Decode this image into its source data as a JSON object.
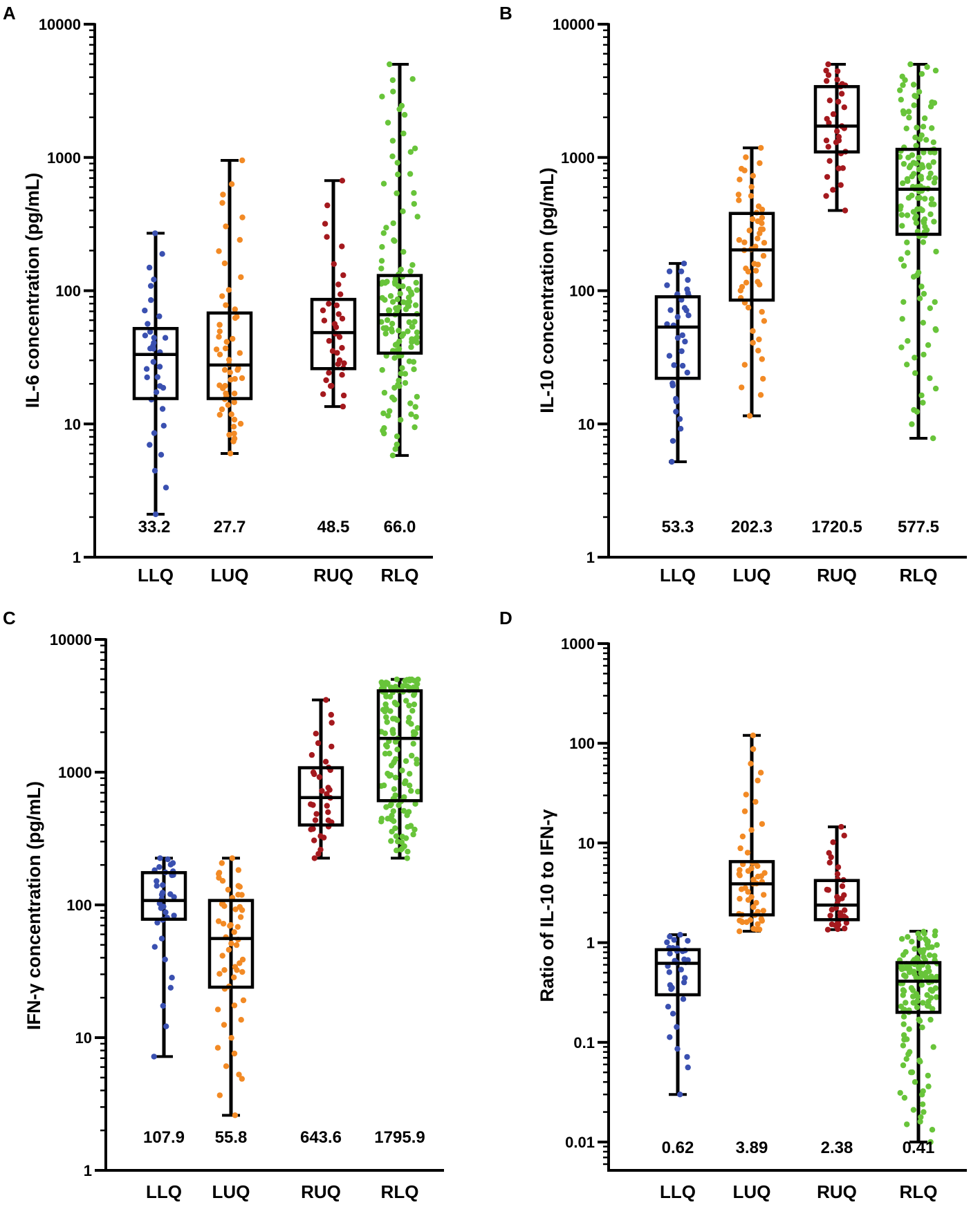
{
  "colors": {
    "LLQ": "#3a50b0",
    "LUQ": "#f28a25",
    "RUQ": "#a4191e",
    "RLQ": "#68c43a",
    "axis": "#000000"
  },
  "chart_data": [
    {
      "type": "box",
      "panel": "A",
      "title": "",
      "xlabel": "",
      "ylabel": "IL-6 concentration (pg/mL)",
      "yscale": "log",
      "ylim": [
        1,
        10000
      ],
      "yticks": [
        1,
        10,
        100,
        1000,
        10000
      ],
      "ytick_labels": [
        "1",
        "10",
        "100",
        "1000",
        "10000"
      ],
      "categories": [
        "LLQ",
        "LUQ",
        "RUQ",
        "RLQ"
      ],
      "boxes": [
        {
          "min": 2.1,
          "q1": 15.5,
          "median": 33.2,
          "q3": 52,
          "max": 270,
          "n": 35
        },
        {
          "min": 6,
          "q1": 15.5,
          "median": 27.7,
          "q3": 68,
          "max": 950,
          "n": 55
        },
        {
          "min": 13.5,
          "q1": 26,
          "median": 48.5,
          "q3": 86,
          "max": 670,
          "n": 35
        },
        {
          "min": 5.8,
          "q1": 34,
          "median": 66.0,
          "q3": 130,
          "max": 5000,
          "n": 140
        }
      ],
      "median_labels": [
        "33.2",
        "27.7",
        "48.5",
        "66.0"
      ]
    },
    {
      "type": "box",
      "panel": "B",
      "title": "",
      "xlabel": "",
      "ylabel": "IL-10 concentration (pg/mL)",
      "yscale": "log",
      "ylim": [
        1,
        10000
      ],
      "yticks": [
        1,
        10,
        100,
        1000,
        10000
      ],
      "ytick_labels": [
        "1",
        "10",
        "100",
        "1000",
        "10000"
      ],
      "categories": [
        "LLQ",
        "LUQ",
        "RUQ",
        "RLQ"
      ],
      "boxes": [
        {
          "min": 5.2,
          "q1": 22,
          "median": 53.3,
          "q3": 90,
          "max": 160,
          "n": 35
        },
        {
          "min": 11.5,
          "q1": 85,
          "median": 202.3,
          "q3": 380,
          "max": 1180,
          "n": 55
        },
        {
          "min": 400,
          "q1": 1100,
          "median": 1720.5,
          "q3": 3400,
          "max": 5000,
          "n": 35
        },
        {
          "min": 7.8,
          "q1": 265,
          "median": 577.5,
          "q3": 1150,
          "max": 5000,
          "n": 140
        }
      ],
      "median_labels": [
        "53.3",
        "202.3",
        "1720.5",
        "577.5"
      ]
    },
    {
      "type": "box",
      "panel": "C",
      "title": "",
      "xlabel": "",
      "ylabel": "IFN-γ concentration (pg/mL)",
      "yscale": "log",
      "ylim": [
        1,
        10000
      ],
      "yticks": [
        1,
        10,
        100,
        1000,
        10000
      ],
      "ytick_labels": [
        "1",
        "10",
        "100",
        "1000",
        "10000"
      ],
      "categories": [
        "LLQ",
        "LUQ",
        "RUQ",
        "RLQ"
      ],
      "boxes": [
        {
          "min": 7.2,
          "q1": 78,
          "median": 107.9,
          "q3": 175,
          "max": 225,
          "n": 35
        },
        {
          "min": 2.6,
          "q1": 24,
          "median": 55.8,
          "q3": 108,
          "max": 225,
          "n": 55
        },
        {
          "min": 225,
          "q1": 400,
          "median": 643.6,
          "q3": 1080,
          "max": 3500,
          "n": 35
        },
        {
          "min": 225,
          "q1": 610,
          "median": 1795.9,
          "q3": 4100,
          "max": 5000,
          "n": 140
        }
      ],
      "median_labels": [
        "107.9",
        "55.8",
        "643.6",
        "1795.9"
      ]
    },
    {
      "type": "box",
      "panel": "D",
      "title": "",
      "xlabel": "",
      "ylabel": "Ratio of IL-10 to IFN-γ",
      "yscale": "log",
      "ylim": [
        0.006,
        1000
      ],
      "yticks": [
        0.01,
        0.1,
        1,
        10,
        100,
        1000
      ],
      "ytick_labels": [
        "0.01",
        "0.1",
        "1",
        "10",
        "100",
        "1000"
      ],
      "categories": [
        "LLQ",
        "LUQ",
        "RUQ",
        "RLQ"
      ],
      "boxes": [
        {
          "min": 0.03,
          "q1": 0.3,
          "median": 0.62,
          "q3": 0.85,
          "max": 1.2,
          "n": 35
        },
        {
          "min": 1.3,
          "q1": 1.9,
          "median": 3.89,
          "q3": 6.5,
          "max": 120,
          "n": 55
        },
        {
          "min": 1.35,
          "q1": 1.7,
          "median": 2.38,
          "q3": 4.2,
          "max": 14.5,
          "n": 35
        },
        {
          "min": 0.01,
          "q1": 0.2,
          "median": 0.41,
          "q3": 0.63,
          "max": 1.3,
          "n": 140
        }
      ],
      "median_labels": [
        "0.62",
        "3.89",
        "2.38",
        "0.41"
      ]
    }
  ]
}
